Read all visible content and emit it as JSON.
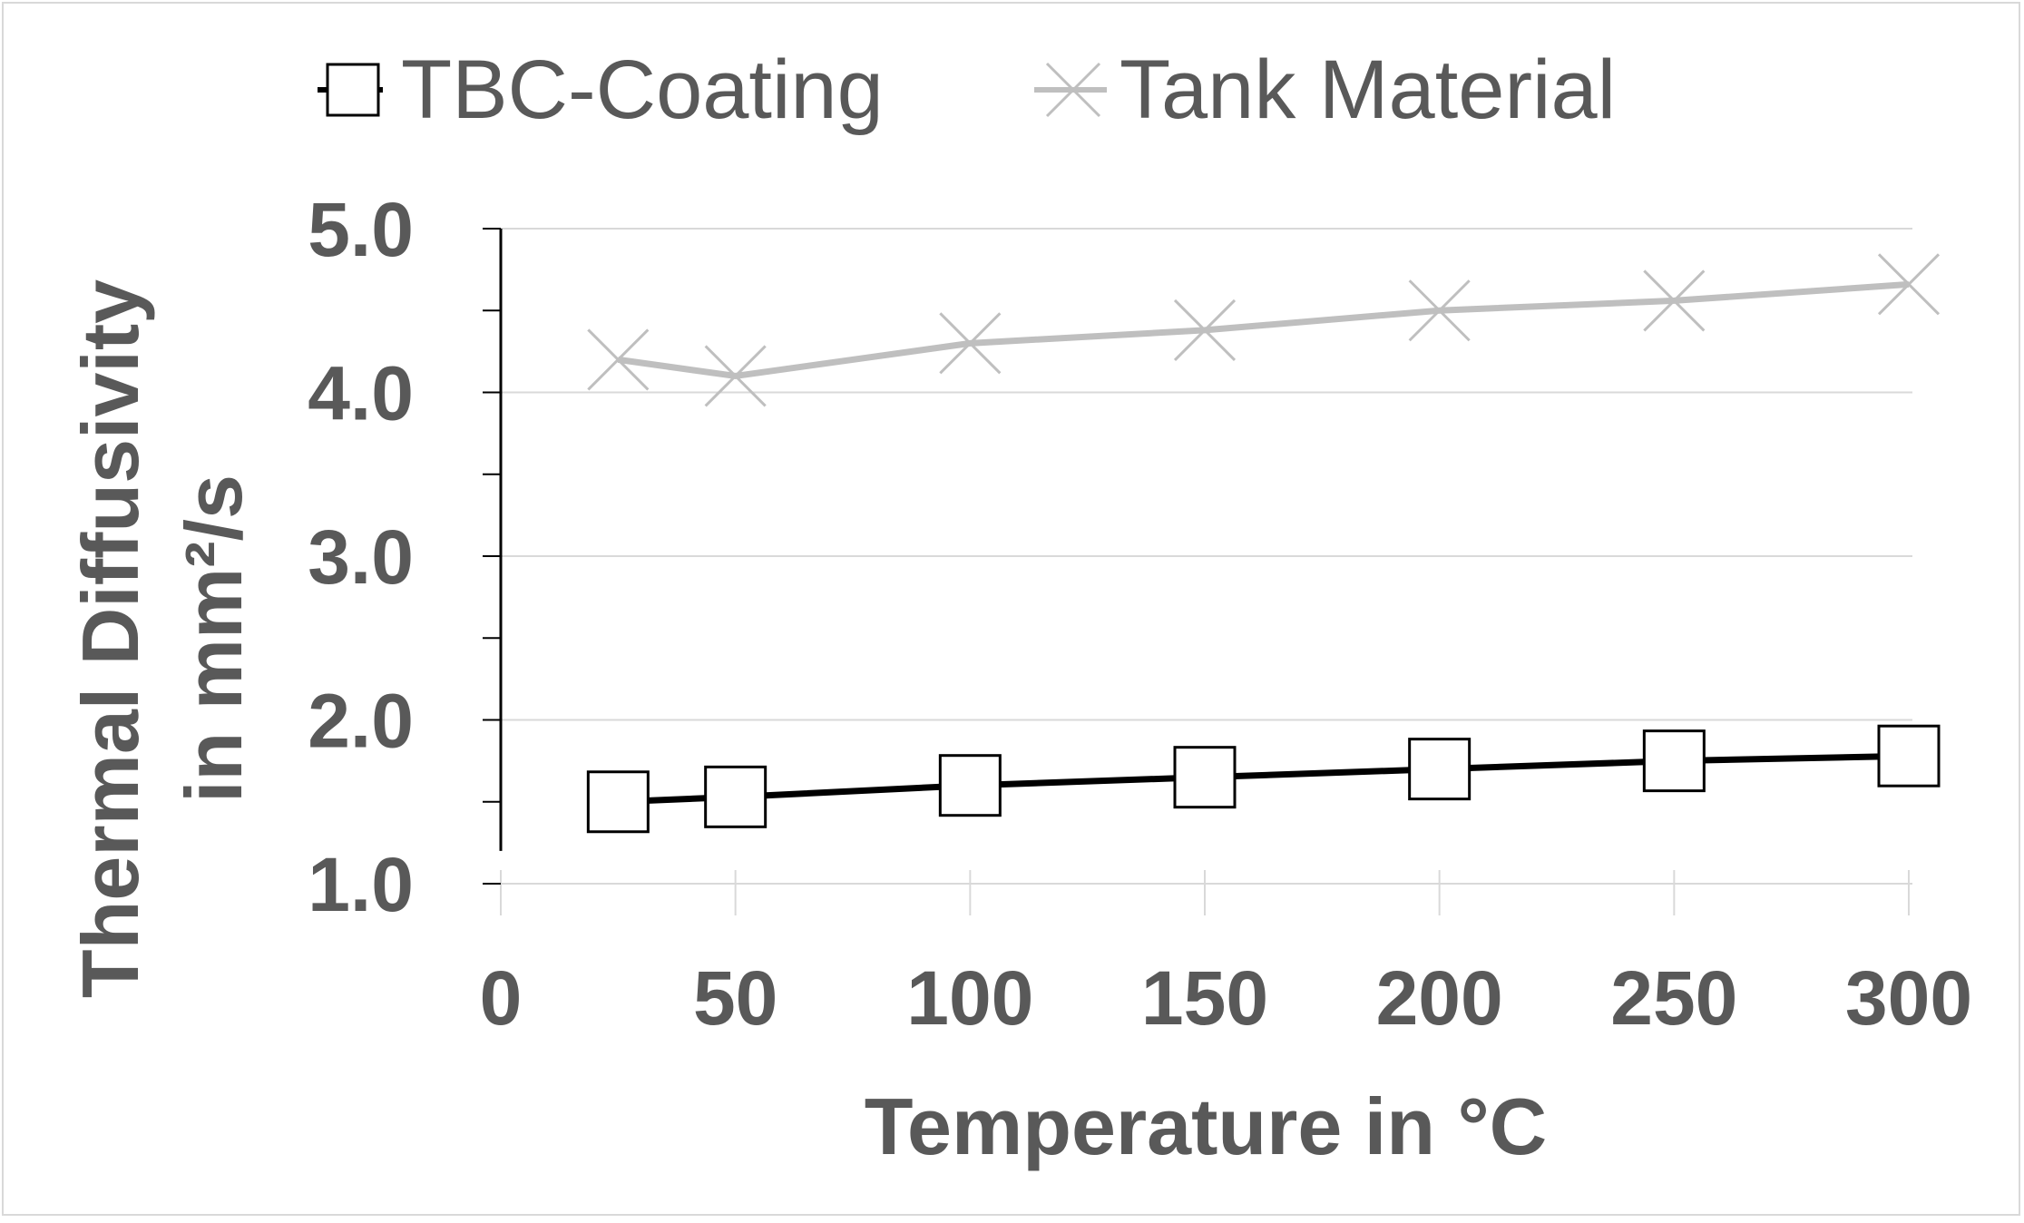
{
  "chart_data": {
    "type": "line",
    "x": [
      25,
      50,
      100,
      150,
      200,
      250,
      300
    ],
    "series": [
      {
        "name": "TBC-Coating",
        "values": [
          1.5,
          1.53,
          1.6,
          1.65,
          1.7,
          1.75,
          1.78
        ],
        "color": "#000000",
        "marker": "square"
      },
      {
        "name": "Tank Material",
        "values": [
          4.2,
          4.1,
          4.3,
          4.38,
          4.5,
          4.56,
          4.66
        ],
        "color": "#bfbfbf",
        "marker": "x"
      }
    ],
    "xlabel": "Temperature in °C",
    "ylabel_line1": "Thermal Diffusivity",
    "ylabel_line2": "in mm²/s",
    "xlim": [
      0,
      300
    ],
    "ylim": [
      1.0,
      5.0
    ],
    "x_ticks": [
      "0",
      "50",
      "100",
      "150",
      "200",
      "250",
      "300"
    ],
    "y_ticks": [
      "1.0",
      "2.0",
      "3.0",
      "4.0",
      "5.0"
    ],
    "grid": true,
    "legend_position": "top"
  }
}
